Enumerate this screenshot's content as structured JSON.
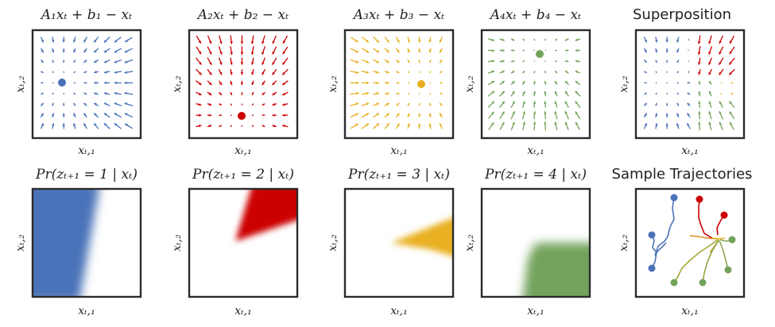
{
  "colors": {
    "blue": "#4a72b8",
    "red": "#cc0000",
    "yellow": "#e8b020",
    "green": "#72a35b",
    "frame": "#2b2b2b",
    "text": "#222222"
  },
  "rows": {
    "top": {
      "panels": [
        {
          "id": "field-1",
          "title": "A₁xₜ + b₁ − xₜ",
          "x_label": "xₜ,₁",
          "y_label": "xₜ,₂",
          "color": "blue"
        },
        {
          "id": "field-2",
          "title": "A₂xₜ + b₂ − xₜ",
          "x_label": "xₜ,₁",
          "y_label": "xₜ,₂",
          "color": "red"
        },
        {
          "id": "field-3",
          "title": "A₃xₜ + b₃ − xₜ",
          "x_label": "xₜ,₁",
          "y_label": "xₜ,₂",
          "color": "yellow"
        },
        {
          "id": "field-4",
          "title": "A₄xₜ + b₄ − xₜ",
          "x_label": "xₜ,₁",
          "y_label": "xₜ,₂",
          "color": "green"
        },
        {
          "id": "superposition",
          "title": "Superposition",
          "x_label": "xₜ,₁",
          "y_label": "xₜ,₂",
          "color": "mixed"
        }
      ]
    },
    "bottom": {
      "panels": [
        {
          "id": "prob-1",
          "title": "Pr(zₜ₊₁ = 1 | xₜ)",
          "x_label": "xₜ,₁",
          "y_label": "xₜ,₂",
          "color": "blue"
        },
        {
          "id": "prob-2",
          "title": "Pr(zₜ₊₁ = 2 | xₜ)",
          "x_label": "xₜ,₁",
          "y_label": "xₜ,₂",
          "color": "red"
        },
        {
          "id": "prob-3",
          "title": "Pr(zₜ₊₁ = 3 | xₜ)",
          "x_label": "xₜ,₁",
          "y_label": "xₜ,₂",
          "color": "yellow"
        },
        {
          "id": "prob-4",
          "title": "Pr(zₜ₊₁ = 4 | xₜ)",
          "x_label": "xₜ,₁",
          "y_label": "xₜ,₂",
          "color": "green"
        },
        {
          "id": "trajectories",
          "title": "Sample Trajectories",
          "x_label": "xₜ,₁",
          "y_label": "xₜ,₂",
          "color": "mixed"
        }
      ]
    }
  }
}
